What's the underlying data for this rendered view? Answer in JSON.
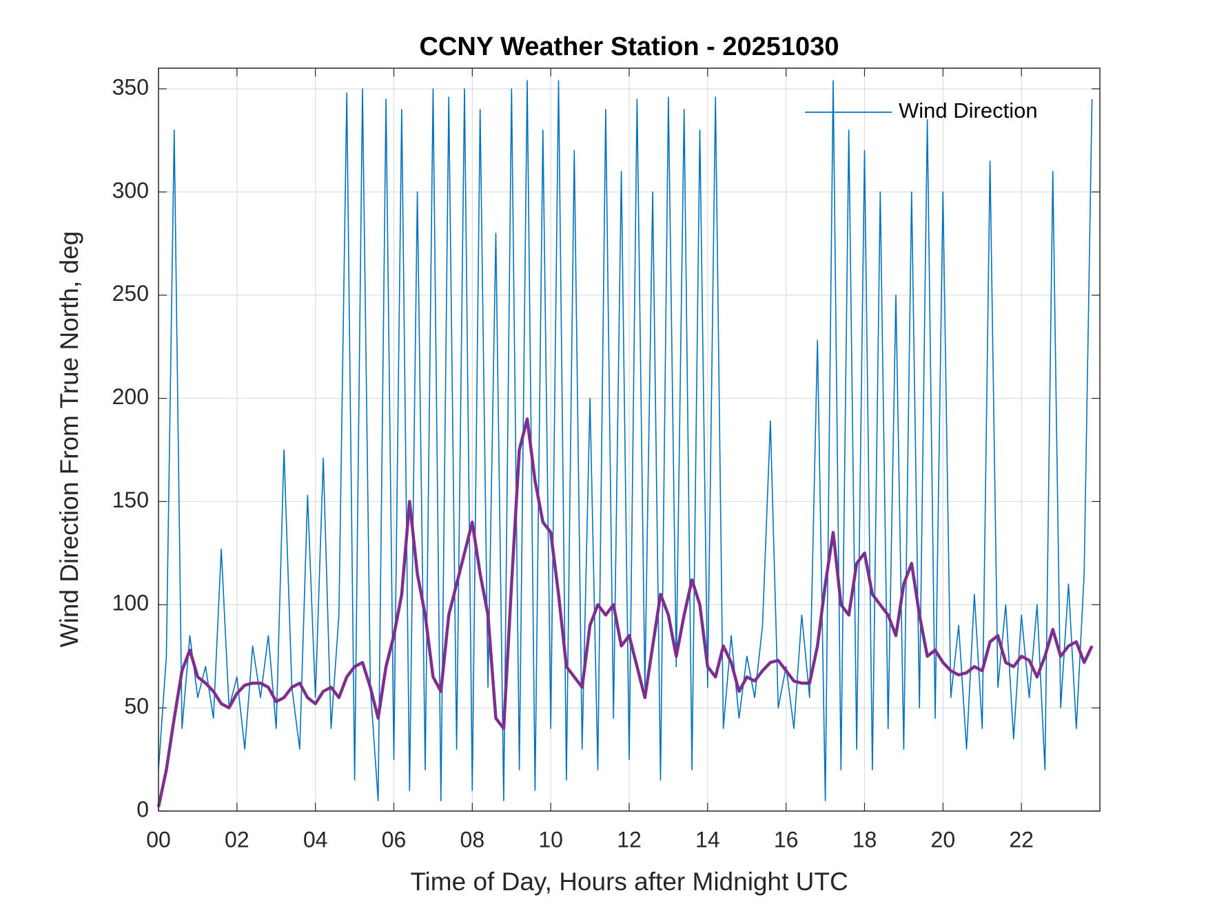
{
  "chart_data": {
    "type": "line",
    "title": "CCNY Weather Station - 20251030",
    "xlabel": "Time of Day, Hours after Midnight UTC",
    "ylabel": "Wind Direction From True North, deg",
    "x": [
      0,
      0.2,
      0.4,
      0.6,
      0.8,
      1,
      1.2,
      1.4,
      1.6,
      1.8,
      2,
      2.2,
      2.4,
      2.6,
      2.8,
      3,
      3.2,
      3.4,
      3.6,
      3.8,
      4,
      4.2,
      4.4,
      4.6,
      4.8,
      5,
      5.2,
      5.4,
      5.6,
      5.8,
      6,
      6.2,
      6.4,
      6.6,
      6.8,
      7,
      7.2,
      7.4,
      7.6,
      7.8,
      8,
      8.2,
      8.4,
      8.6,
      8.8,
      9,
      9.2,
      9.4,
      9.6,
      9.8,
      10,
      10.2,
      10.4,
      10.6,
      10.8,
      11,
      11.2,
      11.4,
      11.6,
      11.8,
      12,
      12.2,
      12.4,
      12.6,
      12.8,
      13,
      13.2,
      13.4,
      13.6,
      13.8,
      14,
      14.2,
      14.4,
      14.6,
      14.8,
      15,
      15.2,
      15.4,
      15.6,
      15.8,
      16,
      16.2,
      16.4,
      16.6,
      16.8,
      17,
      17.2,
      17.4,
      17.6,
      17.8,
      18,
      18.2,
      18.4,
      18.6,
      18.8,
      19,
      19.2,
      19.4,
      19.6,
      19.8,
      20,
      20.2,
      20.4,
      20.6,
      20.8,
      21,
      21.2,
      21.4,
      21.6,
      21.8,
      22,
      22.2,
      22.4,
      22.6,
      22.8,
      23,
      23.2,
      23.4,
      23.6,
      23.8
    ],
    "series": [
      {
        "name": "Wind Direction",
        "color": "#0072bd",
        "values": [
          20,
          75,
          330,
          40,
          85,
          55,
          70,
          45,
          127,
          50,
          65,
          30,
          80,
          55,
          85,
          40,
          175,
          60,
          30,
          153,
          55,
          171,
          40,
          95,
          348,
          15,
          350,
          60,
          5,
          345,
          25,
          340,
          10,
          300,
          20,
          350,
          5,
          346,
          30,
          350,
          10,
          340,
          60,
          280,
          5,
          350,
          20,
          354,
          10,
          330,
          40,
          354,
          15,
          320,
          30,
          200,
          20,
          340,
          45,
          310,
          25,
          345,
          60,
          300,
          15,
          346,
          70,
          340,
          20,
          330,
          60,
          346,
          40,
          85,
          45,
          75,
          55,
          90,
          189,
          50,
          70,
          40,
          95,
          55,
          228,
          5,
          354,
          20,
          330,
          30,
          320,
          20,
          300,
          40,
          250,
          30,
          300,
          50,
          335,
          45,
          300,
          55,
          90,
          30,
          105,
          40,
          315,
          60,
          100,
          35,
          95,
          55,
          100,
          20,
          310,
          50,
          110,
          40,
          115,
          345
        ]
      },
      {
        "color": "#7e2f8e",
        "values": [
          2,
          20,
          45,
          68,
          78,
          65,
          62,
          58,
          52,
          50,
          57,
          61,
          62,
          62,
          60,
          53,
          55,
          60,
          62,
          55,
          52,
          58,
          60,
          55,
          65,
          70,
          72,
          60,
          45,
          70,
          85,
          105,
          150,
          115,
          95,
          65,
          58,
          95,
          110,
          125,
          140,
          115,
          95,
          45,
          40,
          110,
          175,
          190,
          160,
          140,
          135,
          105,
          70,
          65,
          60,
          90,
          100,
          95,
          100,
          80,
          85,
          70,
          55,
          80,
          105,
          95,
          75,
          95,
          112,
          100,
          70,
          65,
          80,
          72,
          58,
          65,
          63,
          68,
          72,
          73,
          68,
          63,
          62,
          62,
          80,
          110,
          135,
          100,
          95,
          120,
          125,
          105,
          100,
          95,
          85,
          110,
          120,
          95,
          75,
          78,
          72,
          68,
          66,
          67,
          70,
          68,
          82,
          85,
          72,
          70,
          75,
          73,
          65,
          75,
          88,
          75,
          80,
          82,
          72,
          80
        ]
      }
    ],
    "xlim": [
      0,
      24
    ],
    "xticks": [
      {
        "value": 0,
        "label": "00"
      },
      {
        "value": 2,
        "label": "02"
      },
      {
        "value": 4,
        "label": "04"
      },
      {
        "value": 6,
        "label": "06"
      },
      {
        "value": 8,
        "label": "08"
      },
      10,
      12,
      14,
      16,
      18,
      20,
      22
    ],
    "ylim": [
      0,
      360
    ],
    "yticks": [
      0,
      50,
      100,
      150,
      200,
      250,
      300,
      350
    ],
    "grid": true,
    "legend": "upper right"
  }
}
